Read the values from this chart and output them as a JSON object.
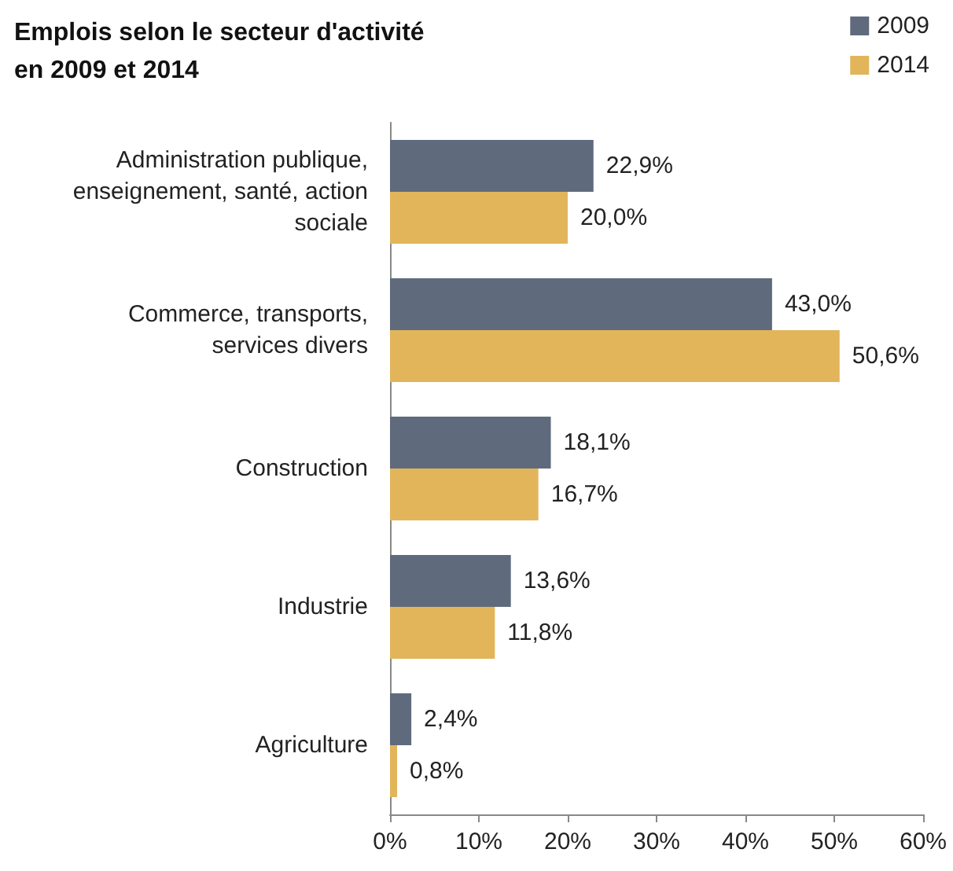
{
  "chart_data": {
    "type": "bar",
    "orientation": "horizontal",
    "title": "Emplois selon le secteur d'activité\nen 2009 et 2014",
    "categories": [
      "Administration publique,\nenseignement, santé, action\nsociale",
      "Commerce, transports,\nservices divers",
      "Construction",
      "Industrie",
      "Agriculture"
    ],
    "series": [
      {
        "name": "2009",
        "color": "#5f6b7d",
        "values": [
          22.9,
          43.0,
          18.1,
          13.6,
          2.4
        ],
        "value_labels": [
          "22,9%",
          "43,0%",
          "18,1%",
          "13,6%",
          "2,4%"
        ]
      },
      {
        "name": "2014",
        "color": "#e2b55a",
        "values": [
          20.0,
          50.6,
          16.7,
          11.8,
          0.8
        ],
        "value_labels": [
          "20,0%",
          "50,6%",
          "16,7%",
          "11,8%",
          "0,8%"
        ]
      }
    ],
    "xlim": [
      0,
      60
    ],
    "xticks": [
      {
        "value": 0,
        "label": "0%"
      },
      {
        "value": 10,
        "label": "10%"
      },
      {
        "value": 20,
        "label": "20%"
      },
      {
        "value": 30,
        "label": "30%"
      },
      {
        "value": 40,
        "label": "40%"
      },
      {
        "value": 50,
        "label": "50%"
      },
      {
        "value": 60,
        "label": "60%"
      }
    ],
    "grid": false,
    "legend": "top right"
  }
}
